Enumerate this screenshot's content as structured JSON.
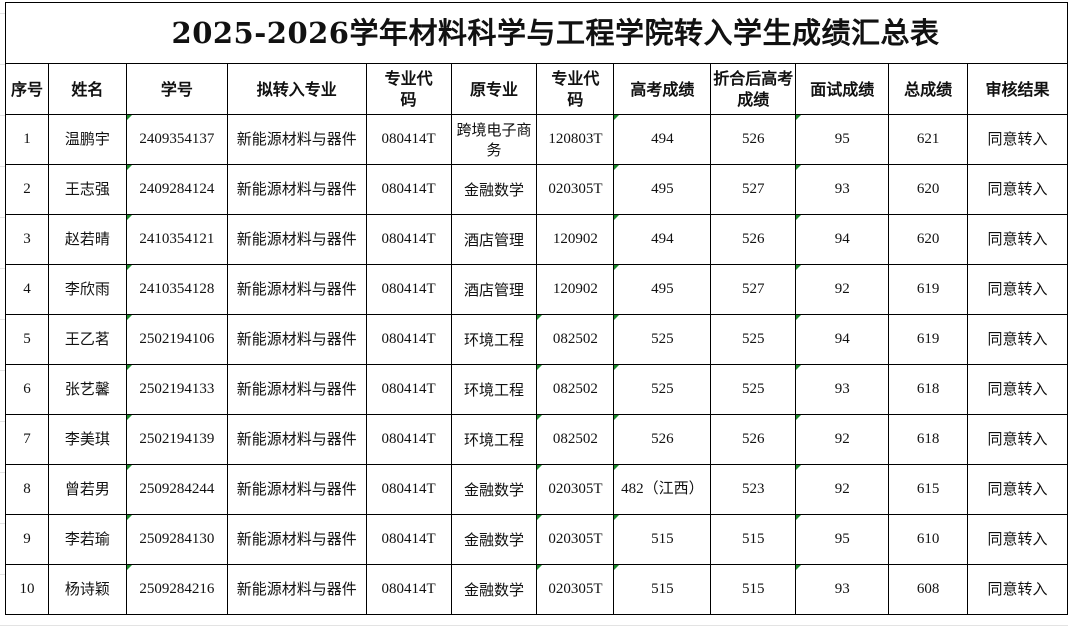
{
  "title": "2025-2026学年材料科学与工程学院转入学生成绩汇总表",
  "headers": [
    "序号",
    "姓名",
    "学号",
    "拟转入专业",
    "专业代码",
    "原专业",
    "专业代码",
    "高考成绩",
    "折合后高考成绩",
    "面试成绩",
    "总成绩",
    "审核结果"
  ],
  "rows": [
    [
      "1",
      "温鹏宇",
      "2409354137",
      "新能源材料与器件",
      "080414T",
      "跨境电子商务",
      "120803T",
      "494",
      "526",
      "95",
      "621",
      "同意转入"
    ],
    [
      "2",
      "王志强",
      "2409284124",
      "新能源材料与器件",
      "080414T",
      "金融数学",
      "020305T",
      "495",
      "527",
      "93",
      "620",
      "同意转入"
    ],
    [
      "3",
      "赵若晴",
      "2410354121",
      "新能源材料与器件",
      "080414T",
      "酒店管理",
      "120902",
      "494",
      "526",
      "94",
      "620",
      "同意转入"
    ],
    [
      "4",
      "李欣雨",
      "2410354128",
      "新能源材料与器件",
      "080414T",
      "酒店管理",
      "120902",
      "495",
      "527",
      "92",
      "619",
      "同意转入"
    ],
    [
      "5",
      "王乙茗",
      "2502194106",
      "新能源材料与器件",
      "080414T",
      "环境工程",
      "082502",
      "525",
      "525",
      "94",
      "619",
      "同意转入"
    ],
    [
      "6",
      "张艺馨",
      "2502194133",
      "新能源材料与器件",
      "080414T",
      "环境工程",
      "082502",
      "525",
      "525",
      "93",
      "618",
      "同意转入"
    ],
    [
      "7",
      "李美琪",
      "2502194139",
      "新能源材料与器件",
      "080414T",
      "环境工程",
      "082502",
      "526",
      "526",
      "92",
      "618",
      "同意转入"
    ],
    [
      "8",
      "曾若男",
      "2509284244",
      "新能源材料与器件",
      "080414T",
      "金融数学",
      "020305T",
      "482（江西）",
      "523",
      "92",
      "615",
      "同意转入"
    ],
    [
      "9",
      "李若瑜",
      "2509284130",
      "新能源材料与器件",
      "080414T",
      "金融数学",
      "020305T",
      "515",
      "515",
      "95",
      "610",
      "同意转入"
    ],
    [
      "10",
      "杨诗颖",
      "2509284216",
      "新能源材料与器件",
      "080414T",
      "金融数学",
      "020305T",
      "515",
      "515",
      "93",
      "608",
      "同意转入"
    ]
  ],
  "colors": {
    "border": "#000000",
    "note_marker": "#1a8a2a"
  }
}
